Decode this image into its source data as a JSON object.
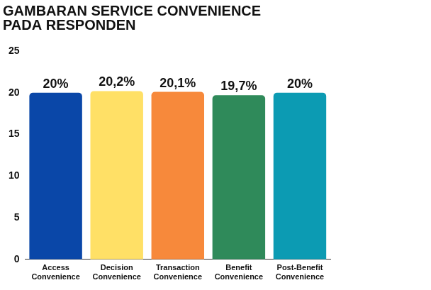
{
  "chart_data": {
    "type": "bar",
    "title": [
      "GAMBARAN SERVICE CONVENIENCE",
      "PADA RESPONDEN"
    ],
    "categories": [
      "Access Convenience",
      "Decision Convenience",
      "Transaction Convenience",
      "Benefit Convenience",
      "Post-Benefit Convenience"
    ],
    "values": [
      20,
      20.2,
      20.1,
      19.7,
      20
    ],
    "value_labels": [
      "20%",
      "20,2%",
      "20,1%",
      "19,7%",
      "20%"
    ],
    "colors": [
      "#0a47a8",
      "#ffe066",
      "#f7893b",
      "#2f8a5a",
      "#0c9bb3"
    ],
    "ylim": [
      0,
      25
    ],
    "yticks": [
      0,
      5,
      10,
      15,
      20,
      25
    ],
    "grid": false,
    "data_labels": true
  }
}
